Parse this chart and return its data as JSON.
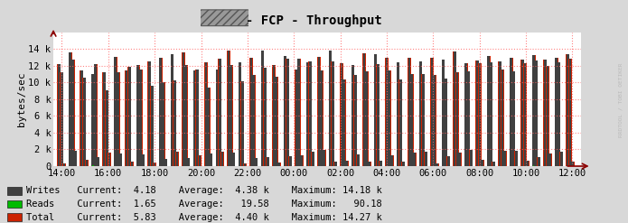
{
  "title": "- FCP - Throughput",
  "ylabel": "bytes/sec",
  "bg_color": "#d8d8d8",
  "plot_bg_color": "#ffffff",
  "grid_color": "#ff6666",
  "x_labels": [
    "14:00",
    "16:00",
    "18:00",
    "20:00",
    "22:00",
    "00:00",
    "02:00",
    "04:00",
    "06:00",
    "08:00",
    "10:00",
    "12:00"
  ],
  "ylim": [
    0,
    16000
  ],
  "yticks": [
    0,
    2000,
    4000,
    6000,
    8000,
    10000,
    12000,
    14000
  ],
  "ytick_labels": [
    "0",
    "2 k",
    "4 k",
    "6 k",
    "8 k",
    "10 k",
    "12 k",
    "14 k"
  ],
  "writes_color": "#404040",
  "reads_color": "#00bb00",
  "total_color": "#cc2200",
  "legend": [
    {
      "label": "Writes",
      "color": "#404040",
      "current": "4.18",
      "average": "4.38 k",
      "maximum": "14.18 k"
    },
    {
      "label": "Reads",
      "color": "#00bb00",
      "current": "1.65",
      "average": "19.58",
      "maximum": "90.18"
    },
    {
      "label": "Total",
      "color": "#cc2200",
      "current": "5.83",
      "average": "4.40 k",
      "maximum": "14.27 k"
    }
  ],
  "n_groups": 46,
  "seed": 7
}
